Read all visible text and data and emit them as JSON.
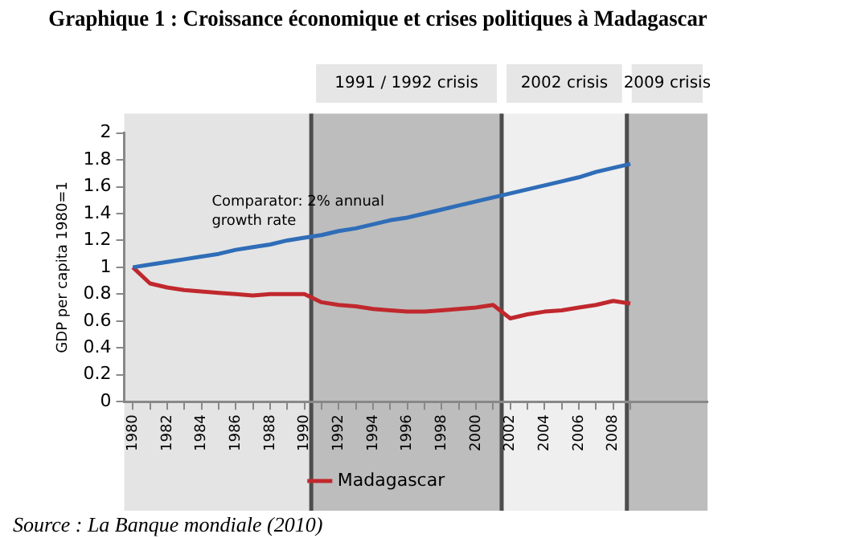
{
  "chart_data": {
    "type": "line",
    "title": "Graphique 1 : Croissance économique et crises politiques à Madagascar",
    "ylabel": "GDP per capita 1980=1",
    "x": [
      1980,
      1981,
      1982,
      1983,
      1984,
      1985,
      1986,
      1987,
      1988,
      1989,
      1990,
      1991,
      1992,
      1993,
      1994,
      1995,
      1996,
      1997,
      1998,
      1999,
      2000,
      2001,
      2002,
      2003,
      2004,
      2005,
      2006,
      2007,
      2008,
      2009
    ],
    "series": [
      {
        "color": "#2f6db8",
        "values": [
          1.0,
          1.02,
          1.04,
          1.06,
          1.08,
          1.1,
          1.13,
          1.15,
          1.17,
          1.2,
          1.22,
          1.24,
          1.27,
          1.29,
          1.32,
          1.35,
          1.37,
          1.4,
          1.43,
          1.46,
          1.49,
          1.52,
          1.55,
          1.58,
          1.61,
          1.64,
          1.67,
          1.71,
          1.74,
          1.77
        ]
      },
      {
        "name": "Madagascar",
        "color": "#c0282d",
        "values": [
          1.0,
          0.88,
          0.85,
          0.83,
          0.82,
          0.81,
          0.8,
          0.79,
          0.8,
          0.8,
          0.8,
          0.74,
          0.72,
          0.71,
          0.69,
          0.68,
          0.67,
          0.67,
          0.68,
          0.69,
          0.7,
          0.72,
          0.62,
          0.65,
          0.67,
          0.68,
          0.7,
          0.72,
          0.75,
          0.73
        ]
      }
    ],
    "xlim": [
      1979.5,
      2013.5
    ],
    "xticks": [
      1980,
      {
        "value": 1981,
        "label": null
      },
      1982,
      {
        "value": 1983,
        "label": null
      },
      1984,
      {
        "value": 1985,
        "label": null
      },
      1986,
      {
        "value": 1987,
        "label": null
      },
      1988,
      {
        "value": 1989,
        "label": null
      },
      1990,
      {
        "value": 1991,
        "label": null
      },
      1992,
      {
        "value": 1993,
        "label": null
      },
      1994,
      {
        "value": 1995,
        "label": null
      },
      1996,
      {
        "value": 1997,
        "label": null
      },
      1998,
      {
        "value": 1999,
        "label": null
      },
      2000,
      {
        "value": 2001,
        "label": null
      },
      2002,
      {
        "value": 2003,
        "label": null
      },
      2004,
      {
        "value": 2005,
        "label": null
      },
      2006,
      {
        "value": 2007,
        "label": null
      },
      2008,
      {
        "value": 2009,
        "label": null
      }
    ],
    "ylim": [
      0,
      2
    ],
    "yticks": [
      0,
      0.2,
      0.4,
      0.6,
      0.8,
      1,
      1.2,
      1.4,
      1.6,
      1.8,
      2
    ],
    "grid": false,
    "legend": "bottom",
    "marker": "none",
    "line_style": "solid",
    "bands": [
      {
        "axis": "x",
        "from": 1979.5,
        "to": 1990.4,
        "label": null,
        "color": "#e4e4e4"
      },
      {
        "axis": "x",
        "from": 1990.4,
        "to": 2001.5,
        "label": "1991 / 1992 crisis",
        "color": "#bdbdbd"
      },
      {
        "axis": "x",
        "from": 2001.5,
        "to": 2008.8,
        "label": "2002 crisis",
        "color": "#efefef"
      },
      {
        "axis": "x",
        "from": 2008.8,
        "to": 2013.5,
        "label": "2009 crisis",
        "color": "#bdbdbd"
      }
    ],
    "ref_lines": [
      {
        "axis": "x",
        "value": 1990.4,
        "color": "#4d4d4d"
      },
      {
        "axis": "x",
        "value": 2001.5,
        "color": "#4d4d4d"
      },
      {
        "axis": "x",
        "value": 2008.8,
        "color": "#4d4d4d"
      }
    ],
    "annotations": [
      "Comparator: 2% annual growth rate",
      "Source : La Banque mondiale (2010)"
    ]
  }
}
